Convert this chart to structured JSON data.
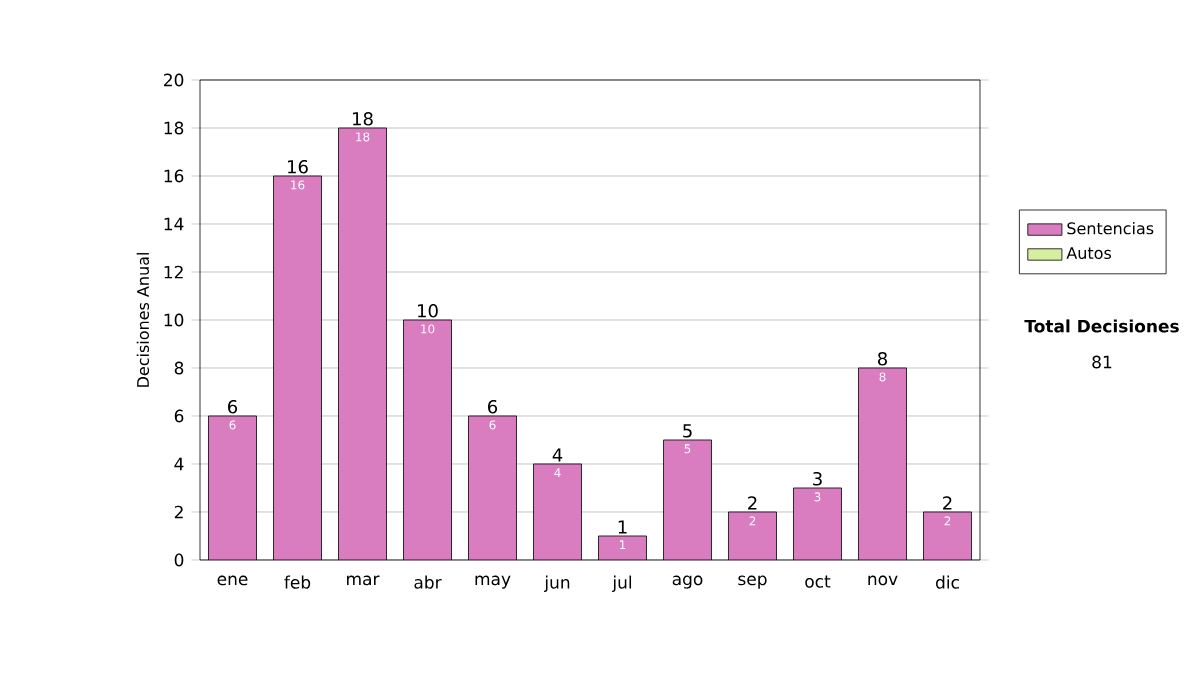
{
  "chart_data": {
    "type": "bar",
    "ylabel": "Decisiones Anual",
    "categories": [
      "ene",
      "feb",
      "mar",
      "abr",
      "may",
      "jun",
      "jul",
      "ago",
      "sep",
      "oct",
      "nov",
      "dic"
    ],
    "series": [
      {
        "name": "Sentencias",
        "color": "#d97cc0",
        "values": [
          6,
          16,
          18,
          10,
          6,
          4,
          1,
          5,
          2,
          3,
          8,
          2
        ],
        "value_labels": [
          "6",
          "16",
          "18",
          "10",
          "6",
          "4",
          "1",
          "5",
          "2",
          "3",
          "8",
          "2"
        ]
      },
      {
        "name": "Autos",
        "color": "#d6eea0",
        "values": [
          null,
          null,
          null,
          null,
          null,
          null,
          null,
          null,
          null,
          null,
          null,
          null
        ]
      }
    ],
    "ylim": [
      0,
      20
    ],
    "yticks": [
      0,
      2,
      4,
      6,
      8,
      10,
      12,
      14,
      16,
      18,
      20
    ],
    "grid": "y",
    "legend": "right",
    "data_labels": true,
    "annotations": [
      "**Total Decisiones**",
      "81"
    ]
  }
}
